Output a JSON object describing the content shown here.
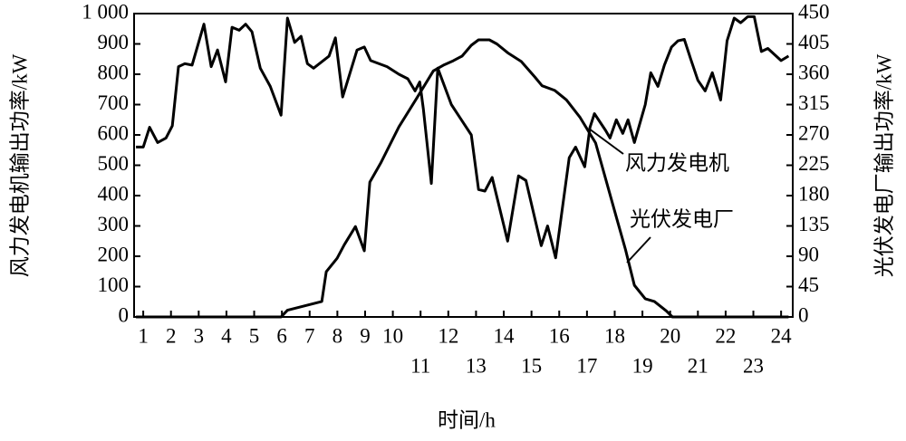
{
  "chart_data": {
    "type": "line",
    "xlabel": "时间/h",
    "ylabel": "风力发电机输出功率/kW",
    "y2label": "光伏发电厂输出功率/kW",
    "xlim": [
      0.67,
      24.42
    ],
    "xticks": [
      1,
      2,
      3,
      4,
      5,
      6,
      7,
      8,
      9,
      10,
      11,
      12,
      13,
      14,
      15,
      16,
      17,
      18,
      19,
      20,
      21,
      22,
      23,
      24
    ],
    "ylim": [
      0,
      1000
    ],
    "yticks": [
      0,
      100,
      200,
      300,
      400,
      500,
      600,
      700,
      800,
      900,
      {
        "value": 1000,
        "label": "1 000"
      }
    ],
    "y2lim": [
      0,
      450
    ],
    "y2ticks": [
      0,
      45,
      90,
      135,
      180,
      225,
      270,
      315,
      360,
      405,
      450
    ],
    "grid": false,
    "series": [
      {
        "name": "风力发电机",
        "color": "#000000",
        "x": [
          0.74,
          1.0,
          1.23,
          1.52,
          1.82,
          2.05,
          2.27,
          2.5,
          2.76,
          3.19,
          3.45,
          3.68,
          3.97,
          4.2,
          4.46,
          4.69,
          4.92,
          5.22,
          5.58,
          5.97,
          6.2,
          6.46,
          6.69,
          6.92,
          7.14,
          7.7,
          7.93,
          8.19,
          8.71,
          8.97,
          9.2,
          9.79,
          10.22,
          10.54,
          10.8,
          10.97,
          11.1,
          11.39,
          11.62,
          12.11,
          12.83,
          13.09,
          13.32,
          13.58,
          14.14,
          14.53,
          14.8,
          15.35,
          15.58,
          15.87,
          16.36,
          16.59,
          16.92,
          17.11,
          17.27,
          17.67,
          17.83,
          18.06,
          18.29,
          18.48,
          18.71,
          19.1,
          19.3,
          19.56,
          19.79,
          20.05,
          20.28,
          20.51,
          20.74,
          21.0,
          21.26,
          21.52,
          21.82,
          22.05,
          22.31,
          22.54,
          22.8,
          23.03,
          23.29,
          23.52,
          24.0,
          24.27
        ],
        "values": [
          560,
          560,
          625,
          575,
          590,
          630,
          825,
          835,
          830,
          965,
          825,
          880,
          775,
          955,
          945,
          965,
          940,
          820,
          760,
          665,
          985,
          905,
          925,
          835,
          820,
          860,
          920,
          725,
          880,
          890,
          845,
          825,
          800,
          785,
          745,
          775,
          685,
          440,
          820,
          700,
          600,
          420,
          415,
          460,
          250,
          465,
          450,
          235,
          300,
          195,
          525,
          560,
          495,
          625,
          670,
          615,
          590,
          650,
          605,
          650,
          575,
          700,
          805,
          760,
          830,
          890,
          910,
          915,
          850,
          780,
          745,
          805,
          715,
          910,
          985,
          970,
          990,
          990,
          875,
          885,
          845,
          860
        ]
      },
      {
        "name": "光伏发电厂",
        "color": "#000000",
        "axis": "y2",
        "x": [
          0.74,
          5.97,
          6.2,
          7.44,
          7.6,
          7.99,
          8.25,
          8.65,
          8.97,
          9.17,
          9.56,
          10.22,
          10.87,
          11.46,
          11.85,
          12.18,
          12.5,
          12.83,
          13.09,
          13.48,
          13.75,
          14.14,
          14.63,
          15.12,
          15.38,
          15.84,
          16.26,
          16.75,
          17.31,
          18.06,
          18.39,
          18.71,
          19.1,
          19.43,
          19.86,
          20.08,
          24.27
        ],
        "values": [
          0,
          0,
          10,
          23,
          67,
          87,
          107,
          134,
          98,
          200,
          228,
          282,
          325,
          365,
          374,
          380,
          387,
          403,
          411,
          411,
          405,
          392,
          379,
          356,
          343,
          336,
          322,
          296,
          258,
          148,
          100,
          47,
          27,
          23,
          9,
          0,
          0
        ]
      }
    ]
  }
}
